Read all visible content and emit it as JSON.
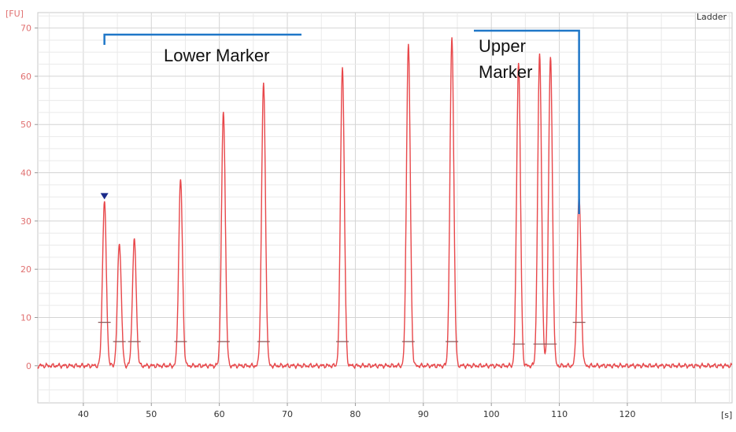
{
  "chart_data": {
    "type": "line",
    "title": "",
    "xlabel": "",
    "ylabel": "",
    "x_unit": "[s]",
    "y_unit": "[FU]",
    "legend": {
      "label": "Ladder",
      "placement": "top-right"
    },
    "xlim": [
      33.3,
      135.4
    ],
    "ylim": [
      -7.7,
      73.2
    ],
    "x_ticks": [
      40,
      50,
      60,
      70,
      80,
      90,
      100,
      110,
      120
    ],
    "y_ticks": [
      0,
      10,
      20,
      30,
      40,
      50,
      60,
      70
    ],
    "grid": true,
    "series_color": "#e8474a",
    "marker_color": "#1a2a8a",
    "annotation_color": "#1f77c8",
    "peaks": [
      {
        "x": 43.1,
        "height": 34.0,
        "level": 9.0
      },
      {
        "x": 45.3,
        "height": 25.5,
        "level": 5.0
      },
      {
        "x": 47.5,
        "height": 26.0,
        "level": 5.0
      },
      {
        "x": 54.3,
        "height": 38.5,
        "level": 5.0
      },
      {
        "x": 60.6,
        "height": 52.5,
        "level": 5.0
      },
      {
        "x": 66.5,
        "height": 58.5,
        "level": 5.0
      },
      {
        "x": 78.1,
        "height": 62.0,
        "level": 5.0
      },
      {
        "x": 87.8,
        "height": 66.5,
        "level": 5.0
      },
      {
        "x": 94.2,
        "height": 68.0,
        "level": 5.0
      },
      {
        "x": 104.0,
        "height": 63.0,
        "level": 4.5
      },
      {
        "x": 107.1,
        "height": 64.5,
        "level": 4.5
      },
      {
        "x": 108.7,
        "height": 64.0,
        "level": 4.5
      },
      {
        "x": 112.9,
        "height": 35.0,
        "level": 9.0
      }
    ],
    "annotations": [
      {
        "label": "Lower Marker",
        "peak_index": 0
      },
      {
        "label": "Upper",
        "label2": "Marker",
        "peak_index": 12
      }
    ]
  }
}
